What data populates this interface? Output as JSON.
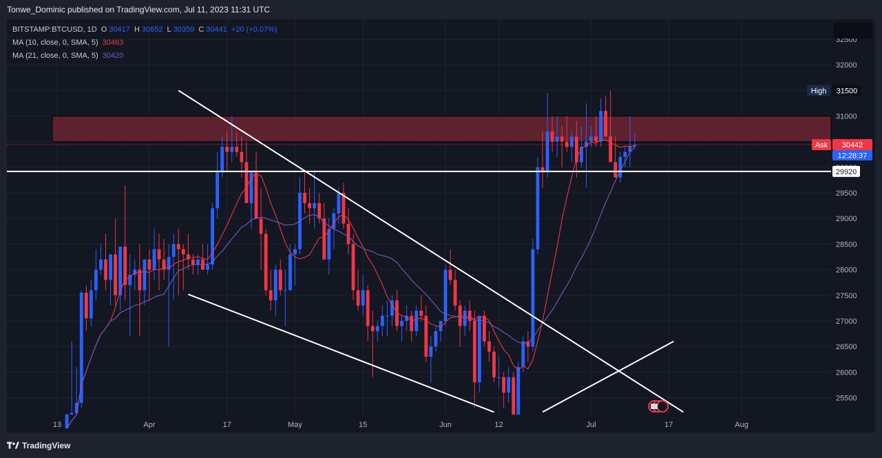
{
  "header": {
    "publish_text": "Tonwe_Dominic published on TradingView.com, Jul 11, 2023 11:31 UTC"
  },
  "legend": {
    "symbol": "BITSTAMP:BTCUSD, 1D",
    "o_label": "O",
    "o_value": "30417",
    "h_label": "H",
    "h_value": "30652",
    "l_label": "L",
    "l_value": "30359",
    "c_label": "C",
    "c_value": "30441",
    "change": "+20 (+0.07%)",
    "ma10_label": "MA (10, close, 0, SMA, 5)",
    "ma10_value": "30463",
    "ma21_label": "MA (21, close, 0, SMA, 5)",
    "ma21_value": "30420"
  },
  "price_labels": {
    "high_label": "High",
    "high_value": "31500",
    "ask_label": "Ask",
    "ask_value": "30442",
    "countdown": "12:28:37",
    "line_value": "29920"
  },
  "footer": {
    "brand": "TradingView"
  },
  "colors": {
    "up": "#2962ff",
    "down": "#f23645",
    "ma10": "#f23645",
    "ma21": "#7e57c2",
    "zone": "#6b2430",
    "bg": "#131722",
    "text": "#b2b5be"
  },
  "chart_data": {
    "type": "candlestick",
    "symbol": "BITSTAMP:BTCUSD",
    "timeframe": "1D",
    "y_ticks": [
      25500,
      26000,
      26500,
      27000,
      27500,
      28000,
      28500,
      29000,
      29500,
      30000,
      30500,
      31000,
      31500,
      32000,
      32500
    ],
    "ylim": [
      25170,
      32890
    ],
    "x_tick_labels": [
      "13",
      "Apr",
      "17",
      "May",
      "15",
      "Jun",
      "12",
      "Jul",
      "17",
      "Aug"
    ],
    "x_tick_dates": [
      "2023-03-13",
      "2023-04-01",
      "2023-04-17",
      "2023-05-01",
      "2023-05-15",
      "2023-06-01",
      "2023-06-12",
      "2023-07-01",
      "2023-07-17",
      "2023-08-01"
    ],
    "resistance_zone": [
      30500,
      31000
    ],
    "horizontal_line": 29920,
    "trendlines": [
      {
        "from": [
          "2023-04-07",
          31500
        ],
        "to": [
          "2023-07-20",
          25220
        ]
      },
      {
        "from": [
          "2023-04-09",
          27520
        ],
        "to": [
          "2023-06-11",
          25220
        ]
      },
      {
        "from": [
          "2023-06-21",
          25220
        ],
        "to": [
          "2023-07-18",
          26600
        ]
      }
    ],
    "candles_ohlc": [
      [
        24200,
        25200,
        24000,
        24900
      ],
      [
        24900,
        26600,
        24800,
        25200
      ],
      [
        25200,
        26100,
        24900,
        25400
      ],
      [
        25400,
        27600,
        25300,
        27550
      ],
      [
        27550,
        27700,
        26800,
        27050
      ],
      [
        27050,
        27800,
        26900,
        27600
      ],
      [
        27600,
        28400,
        27400,
        28000
      ],
      [
        28000,
        28500,
        27900,
        28200
      ],
      [
        28200,
        28700,
        27600,
        27800
      ],
      [
        27800,
        28300,
        27300,
        28300
      ],
      [
        28300,
        29000,
        27300,
        27500
      ],
      [
        27500,
        28450,
        27200,
        28450
      ],
      [
        28450,
        29650,
        27400,
        27700
      ],
      [
        27700,
        28300,
        26700,
        27900
      ],
      [
        27900,
        28200,
        27600,
        28000
      ],
      [
        28000,
        28500,
        26700,
        27600
      ],
      [
        27600,
        28200,
        27300,
        28200
      ],
      [
        28200,
        28400,
        27400,
        28000
      ],
      [
        28000,
        28800,
        27800,
        28400
      ],
      [
        28400,
        28700,
        27600,
        28200
      ],
      [
        28200,
        28600,
        27800,
        28000
      ],
      [
        28000,
        28500,
        26500,
        28250
      ],
      [
        28250,
        28700,
        27400,
        28500
      ],
      [
        28500,
        28800,
        27500,
        28400
      ],
      [
        28400,
        28500,
        27600,
        28300
      ],
      [
        28300,
        28700,
        28000,
        28200
      ],
      [
        28200,
        28300,
        27900,
        28100
      ],
      [
        28100,
        28300,
        27900,
        28200
      ],
      [
        28200,
        28500,
        28000,
        28000
      ],
      [
        28000,
        28500,
        27900,
        28100
      ],
      [
        28100,
        29300,
        28000,
        29200
      ],
      [
        29200,
        30300,
        29000,
        29900
      ],
      [
        29900,
        30600,
        29800,
        30400
      ],
      [
        30400,
        30700,
        29900,
        30300
      ],
      [
        30300,
        31000,
        30100,
        30400
      ],
      [
        30400,
        30700,
        30200,
        30300
      ],
      [
        30300,
        30600,
        29800,
        30100
      ],
      [
        30100,
        30500,
        29800,
        29300
      ],
      [
        29300,
        29500,
        28800,
        29900
      ],
      [
        29900,
        30300,
        29400,
        29000
      ],
      [
        29000,
        29600,
        28000,
        28700
      ],
      [
        28700,
        28800,
        27500,
        27600
      ],
      [
        27600,
        28000,
        27200,
        27400
      ],
      [
        27400,
        28100,
        27100,
        28000
      ],
      [
        28000,
        28200,
        27500,
        27600
      ],
      [
        27600,
        28000,
        26900,
        27600
      ],
      [
        27600,
        28500,
        27600,
        28300
      ],
      [
        28300,
        28500,
        27700,
        28400
      ],
      [
        28400,
        29800,
        28300,
        29500
      ],
      [
        29500,
        29900,
        29100,
        29300
      ],
      [
        29300,
        29600,
        28900,
        29200
      ],
      [
        29200,
        29900,
        28800,
        29300
      ],
      [
        29300,
        29500,
        28900,
        29000
      ],
      [
        29000,
        29300,
        28200,
        28200
      ],
      [
        28200,
        29000,
        27900,
        28800
      ],
      [
        28800,
        29200,
        28400,
        29100
      ],
      [
        29100,
        29600,
        28900,
        29500
      ],
      [
        29500,
        29700,
        28800,
        28900
      ],
      [
        28900,
        29200,
        28300,
        28500
      ],
      [
        28500,
        28700,
        27400,
        27600
      ],
      [
        27600,
        28000,
        27200,
        27300
      ],
      [
        27300,
        27900,
        27100,
        27600
      ],
      [
        27600,
        27700,
        26600,
        26900
      ],
      [
        26900,
        27200,
        25900,
        26800
      ],
      [
        26800,
        27000,
        26600,
        26900
      ],
      [
        26900,
        27300,
        26700,
        27100
      ],
      [
        27100,
        27400,
        26700,
        27100
      ],
      [
        27100,
        27500,
        26900,
        27400
      ],
      [
        27400,
        27600,
        26800,
        26900
      ],
      [
        26900,
        27100,
        26600,
        27000
      ],
      [
        27000,
        27300,
        26800,
        27100
      ],
      [
        27100,
        27200,
        26600,
        26800
      ],
      [
        26800,
        27300,
        26700,
        27200
      ],
      [
        27200,
        27500,
        27000,
        27100
      ],
      [
        27100,
        27300,
        26200,
        26300
      ],
      [
        26300,
        26700,
        25800,
        26500
      ],
      [
        26500,
        26900,
        26400,
        26800
      ],
      [
        26800,
        27000,
        26600,
        27000
      ],
      [
        27000,
        28100,
        26900,
        28000
      ],
      [
        28000,
        28400,
        27700,
        27800
      ],
      [
        27800,
        28000,
        27200,
        27300
      ],
      [
        27300,
        27400,
        26500,
        26900
      ],
      [
        26900,
        27300,
        26700,
        27200
      ],
      [
        27200,
        27400,
        26800,
        27000
      ],
      [
        27000,
        27200,
        25300,
        25800
      ],
      [
        25800,
        27100,
        25600,
        27100
      ],
      [
        27100,
        27200,
        26500,
        26600
      ],
      [
        26600,
        26800,
        26200,
        26400
      ],
      [
        26400,
        26500,
        25800,
        25900
      ],
      [
        25900,
        26300,
        25700,
        25900
      ],
      [
        25900,
        26000,
        25300,
        25600
      ],
      [
        25600,
        26100,
        25400,
        25900
      ],
      [
        25900,
        26000,
        24800,
        25100
      ],
      [
        25100,
        26200,
        25000,
        26100
      ],
      [
        26100,
        26700,
        26000,
        26600
      ],
      [
        26600,
        26800,
        26200,
        26500
      ],
      [
        26500,
        28600,
        26400,
        28400
      ],
      [
        28400,
        30200,
        28300,
        30000
      ],
      [
        30000,
        30700,
        29600,
        29900
      ],
      [
        29900,
        31450,
        29800,
        30700
      ],
      [
        30700,
        31000,
        30300,
        30500
      ],
      [
        30500,
        31000,
        30200,
        30600
      ],
      [
        30600,
        30800,
        30000,
        30500
      ],
      [
        30500,
        31000,
        30300,
        30400
      ],
      [
        30400,
        30700,
        30100,
        30600
      ],
      [
        30600,
        30900,
        29800,
        30100
      ],
      [
        30100,
        30800,
        30000,
        30400
      ],
      [
        30400,
        31250,
        29600,
        30500
      ],
      [
        30500,
        30800,
        30400,
        30600
      ],
      [
        30600,
        31000,
        30400,
        30500
      ],
      [
        30500,
        31350,
        30400,
        31100
      ],
      [
        31100,
        31400,
        30800,
        30600
      ],
      [
        30600,
        31500,
        30200,
        30100
      ],
      [
        30100,
        30600,
        29900,
        29800
      ],
      [
        29800,
        30300,
        29700,
        30200
      ],
      [
        30200,
        30400,
        30000,
        30300
      ],
      [
        30300,
        31000,
        30000,
        30400
      ],
      [
        30417,
        30652,
        30359,
        30441
      ]
    ],
    "ma10_values": [],
    "ma21_values": []
  }
}
